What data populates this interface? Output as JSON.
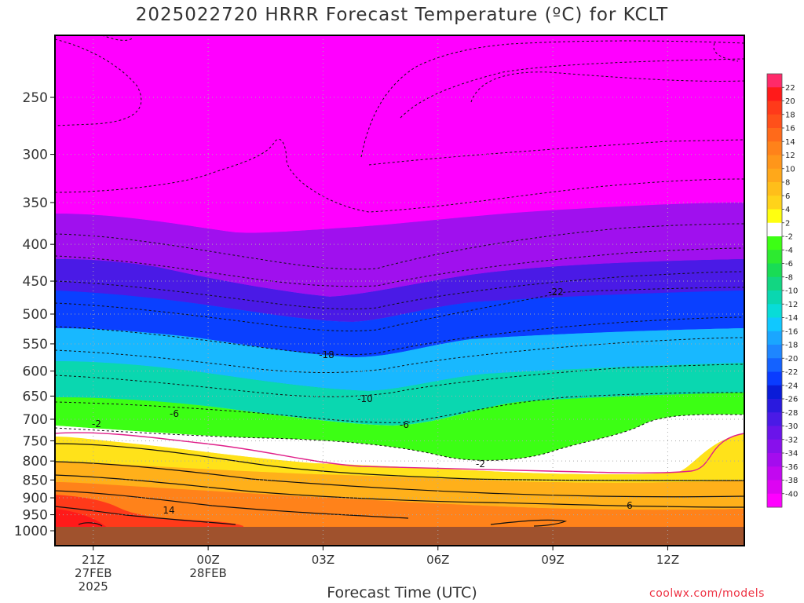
{
  "title": "2025022720 HRRR Forecast Temperature (ºC) for KCLT",
  "xlabel": "Forecast Time (UTC)",
  "credit": "coolwx.com/models",
  "chart_data": {
    "type": "heatmap",
    "title": "2025022720 HRRR Forecast Temperature (ºC) for KCLT",
    "xlabel": "Forecast Time (UTC)",
    "ylabel": "",
    "y_axis": "pressure (hPa), reversed",
    "y_ticks": [
      250,
      300,
      350,
      400,
      450,
      500,
      550,
      600,
      650,
      700,
      750,
      800,
      850,
      900,
      950,
      1000
    ],
    "x_ticks": [
      {
        "hour": 1,
        "lines": [
          "21Z",
          "27FEB",
          "2025"
        ]
      },
      {
        "hour": 4,
        "lines": [
          "00Z",
          "28FEB"
        ]
      },
      {
        "hour": 7,
        "lines": [
          "03Z"
        ]
      },
      {
        "hour": 10,
        "lines": [
          "06Z"
        ]
      },
      {
        "hour": 13,
        "lines": [
          "09Z"
        ]
      },
      {
        "hour": 16,
        "lines": [
          "12Z"
        ]
      }
    ],
    "x_range_hours": [
      0,
      18
    ],
    "colorbar": {
      "labels": [
        22,
        20,
        18,
        16,
        14,
        12,
        10,
        8,
        6,
        4,
        2,
        -2,
        -4,
        -6,
        -8,
        -10,
        -12,
        -14,
        -16,
        -18,
        -20,
        -22,
        -24,
        -26,
        -28,
        -30,
        -32,
        -34,
        -36,
        -38,
        -40
      ],
      "colors": [
        "#ff2a6a",
        "#ff1a1a",
        "#ff3a1a",
        "#ff501a",
        "#ff6a1a",
        "#ff821a",
        "#ff961a",
        "#ffa81a",
        "#ffbe1a",
        "#ffd31a",
        "#ffff10",
        "#ffffff",
        "#3cff14",
        "#2dea30",
        "#19dc55",
        "#12d682",
        "#0ad7b0",
        "#08dcd8",
        "#10c8ff",
        "#1aa6ff",
        "#1e86ff",
        "#1462ff",
        "#0a3cff",
        "#0a1cd8",
        "#2a1ade",
        "#4a1ae6",
        "#6a14ea",
        "#8810ec",
        "#a40cee",
        "#c208f0",
        "#dd04f2",
        "#ff00ff"
      ]
    },
    "contour_labels": [
      {
        "value": -22,
        "text": "-22"
      },
      {
        "value": -18,
        "text": "-18"
      },
      {
        "value": -10,
        "text": "-10"
      },
      {
        "value": -6,
        "text": "-6"
      },
      {
        "value": -6,
        "text": "-6"
      },
      {
        "value": -2,
        "text": "-2"
      },
      {
        "value": -2,
        "text": "-2"
      },
      {
        "value": 14,
        "text": "14"
      },
      {
        "value": 6,
        "text": "6"
      }
    ],
    "grid": true
  }
}
